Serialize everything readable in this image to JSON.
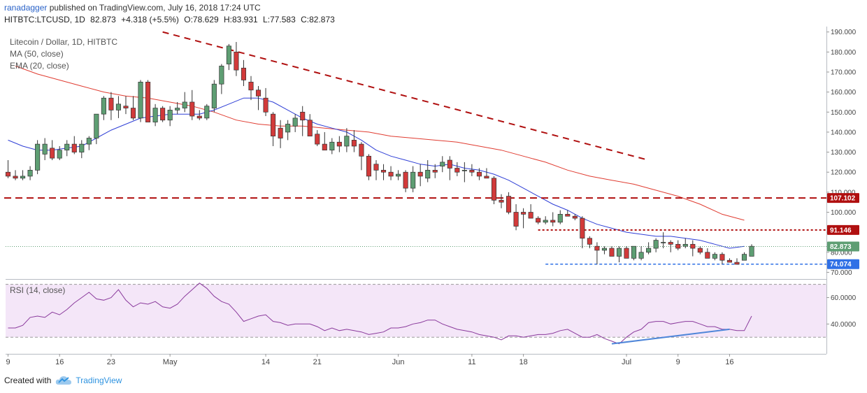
{
  "header": {
    "user": "ranadagger",
    "published": "published on TradingView.com, July 16, 2018 17:24 UTC",
    "symbol": "HITBTC:LTCUSD, 1D",
    "price": "82.873",
    "change": "+4.318 (+5.5%)",
    "open": "O:78.629",
    "high": "H:83.931",
    "low": "L:77.583",
    "close": "C:82.873"
  },
  "legend": {
    "title": "Litecoin / Dollar, 1D, HITBTC",
    "ma": "MA (50, close)",
    "ema": "EMA (20, close)"
  },
  "rsi_label": "RSI (14, close)",
  "footer": {
    "created": "Created with",
    "brand": "TradingView"
  },
  "colors": {
    "up": "#5e9e73",
    "down": "#d23a3a",
    "ma": "#e03c31",
    "ema": "#2f3fd6",
    "rsi": "#8a3a9c",
    "resistance": "#b00f0f",
    "support": "#2f70e6",
    "rsi_trend": "#4f86d9"
  },
  "chart_data": {
    "type": "candlestick",
    "title": "Litecoin / Dollar, 1D, HITBTC",
    "price_ylim": [
      67,
      192
    ],
    "price_ticks": [
      "190.000",
      "180.000",
      "170.000",
      "160.000",
      "150.000",
      "140.000",
      "130.000",
      "120.000",
      "110.000",
      "100.000",
      "90.000",
      "80.000",
      "70.000"
    ],
    "x_ticks": [
      {
        "i": 0,
        "label": "9"
      },
      {
        "i": 7,
        "label": "16"
      },
      {
        "i": 14,
        "label": "23"
      },
      {
        "i": 22,
        "label": "May"
      },
      {
        "i": 35,
        "label": "14"
      },
      {
        "i": 42,
        "label": "21"
      },
      {
        "i": 53,
        "label": "Jun"
      },
      {
        "i": 63,
        "label": "11"
      },
      {
        "i": 70,
        "label": "18"
      },
      {
        "i": 84,
        "label": "Jul"
      },
      {
        "i": 91,
        "label": "9"
      },
      {
        "i": 98,
        "label": "16"
      }
    ],
    "candles": [
      [
        120,
        126,
        117,
        118
      ],
      [
        118,
        121,
        116,
        117
      ],
      [
        117,
        121,
        116,
        118
      ],
      [
        118,
        123,
        116,
        121
      ],
      [
        121,
        136,
        119,
        134
      ],
      [
        129,
        137,
        126,
        134
      ],
      [
        132,
        136,
        126,
        127
      ],
      [
        127,
        133,
        126,
        131
      ],
      [
        131,
        136,
        128,
        134
      ],
      [
        134,
        138,
        129,
        130
      ],
      [
        130,
        136,
        127,
        134
      ],
      [
        134,
        138,
        131,
        137
      ],
      [
        137,
        149,
        134,
        149
      ],
      [
        149,
        158,
        146,
        157
      ],
      [
        157,
        160,
        146,
        151
      ],
      [
        151,
        158,
        147,
        154
      ],
      [
        153,
        158,
        149,
        152
      ],
      [
        152,
        158,
        146,
        147
      ],
      [
        147,
        166,
        145,
        165
      ],
      [
        165,
        166,
        145,
        145
      ],
      [
        145,
        154,
        143,
        152
      ],
      [
        152,
        153,
        145,
        146
      ],
      [
        146,
        153,
        143,
        151
      ],
      [
        151,
        155,
        149,
        152
      ],
      [
        152,
        160,
        150,
        155
      ],
      [
        155,
        161,
        146,
        148
      ],
      [
        148,
        151,
        146,
        147
      ],
      [
        147,
        154,
        146,
        153
      ],
      [
        152,
        166,
        150,
        164
      ],
      [
        164,
        174,
        159,
        173
      ],
      [
        174,
        184,
        171,
        183
      ],
      [
        180,
        185,
        168,
        171
      ],
      [
        172,
        176,
        163,
        166
      ],
      [
        165,
        168,
        156,
        161
      ],
      [
        161,
        163,
        151,
        158
      ],
      [
        157,
        162,
        148,
        150
      ],
      [
        149,
        150,
        133,
        138
      ],
      [
        142,
        146,
        132,
        137
      ],
      [
        140,
        146,
        136,
        144
      ],
      [
        143,
        149,
        140,
        147
      ],
      [
        150,
        153,
        138,
        146
      ],
      [
        146,
        149,
        138,
        138
      ],
      [
        139,
        141,
        133,
        134
      ],
      [
        134,
        140,
        132,
        131
      ],
      [
        131,
        137,
        129,
        135
      ],
      [
        135,
        138,
        130,
        133
      ],
      [
        133,
        142,
        130,
        138
      ],
      [
        136,
        141,
        130,
        133
      ],
      [
        134,
        135,
        121,
        128
      ],
      [
        128,
        129,
        116,
        118
      ],
      [
        124,
        126,
        116,
        121
      ],
      [
        121,
        124,
        116,
        120
      ],
      [
        120,
        123,
        116,
        118
      ],
      [
        118,
        121,
        116,
        119
      ],
      [
        120,
        121,
        110,
        112
      ],
      [
        112,
        123,
        110,
        120
      ],
      [
        120,
        124,
        113,
        118
      ],
      [
        117,
        126,
        115,
        121
      ],
      [
        121,
        124,
        117,
        120
      ],
      [
        123,
        128,
        120,
        125
      ],
      [
        126,
        128,
        116,
        122
      ],
      [
        122,
        125,
        118,
        120
      ],
      [
        121,
        125,
        115,
        121
      ],
      [
        121,
        124,
        118,
        120
      ],
      [
        120,
        122,
        116,
        118
      ],
      [
        118,
        122,
        117,
        117
      ],
      [
        117,
        118,
        104,
        106
      ],
      [
        106,
        109,
        102,
        105
      ],
      [
        108,
        110,
        99,
        100
      ],
      [
        100,
        104,
        91,
        93
      ],
      [
        100,
        102,
        92,
        99
      ],
      [
        100,
        104,
        98,
        97
      ],
      [
        97,
        98,
        94,
        95
      ],
      [
        95,
        98,
        94,
        96
      ],
      [
        96,
        100,
        93,
        95
      ],
      [
        95,
        101,
        94,
        99
      ],
      [
        99,
        101,
        98,
        98
      ],
      [
        98,
        99,
        96,
        97
      ],
      [
        97,
        98,
        82,
        87
      ],
      [
        87,
        88,
        82,
        84
      ],
      [
        83,
        85,
        74,
        81
      ],
      [
        81,
        83,
        79,
        82
      ],
      [
        82,
        83,
        79,
        78
      ],
      [
        78,
        83,
        75,
        82
      ],
      [
        82,
        83,
        77,
        77
      ],
      [
        77,
        83,
        76,
        83
      ],
      [
        77,
        83,
        76,
        80
      ],
      [
        80,
        85,
        79,
        82
      ],
      [
        82,
        87,
        80,
        86
      ],
      [
        85,
        90,
        82,
        85
      ],
      [
        85,
        86,
        80,
        84
      ],
      [
        84,
        86,
        81,
        82
      ],
      [
        83,
        87,
        82,
        84
      ],
      [
        84,
        86,
        78,
        82
      ],
      [
        82,
        83,
        79,
        80
      ],
      [
        80,
        82,
        77,
        77
      ],
      [
        77,
        80,
        76,
        79
      ],
      [
        79,
        80,
        74,
        76
      ],
      [
        76,
        77,
        75,
        75
      ],
      [
        75,
        77,
        74,
        74
      ],
      [
        76,
        80,
        76,
        79
      ],
      [
        78,
        84,
        78,
        83
      ]
    ],
    "ma50": [
      [
        1,
        173
      ],
      [
        4,
        169
      ],
      [
        7,
        166
      ],
      [
        10,
        163
      ],
      [
        13,
        160
      ],
      [
        16,
        158
      ],
      [
        19,
        157
      ],
      [
        22,
        155
      ],
      [
        25,
        153
      ],
      [
        28,
        150
      ],
      [
        31,
        146
      ],
      [
        34,
        144
      ],
      [
        37,
        143
      ],
      [
        40,
        143
      ],
      [
        43,
        142
      ],
      [
        46,
        141
      ],
      [
        49,
        140
      ],
      [
        52,
        138
      ],
      [
        55,
        137
      ],
      [
        58,
        136
      ],
      [
        61,
        135
      ],
      [
        64,
        133
      ],
      [
        67,
        131
      ],
      [
        70,
        128
      ],
      [
        73,
        125
      ],
      [
        76,
        121
      ],
      [
        79,
        118
      ],
      [
        82,
        116
      ],
      [
        85,
        114
      ],
      [
        88,
        111
      ],
      [
        91,
        108
      ],
      [
        94,
        104
      ],
      [
        97,
        99
      ],
      [
        100,
        96
      ]
    ],
    "ema20": [
      [
        0,
        136
      ],
      [
        2,
        133
      ],
      [
        4,
        131
      ],
      [
        6,
        131
      ],
      [
        8,
        132
      ],
      [
        10,
        133
      ],
      [
        12,
        137
      ],
      [
        14,
        141
      ],
      [
        16,
        144
      ],
      [
        18,
        147
      ],
      [
        20,
        148
      ],
      [
        22,
        149
      ],
      [
        24,
        149
      ],
      [
        26,
        149
      ],
      [
        28,
        151
      ],
      [
        30,
        154
      ],
      [
        32,
        157
      ],
      [
        34,
        157
      ],
      [
        36,
        155
      ],
      [
        38,
        151
      ],
      [
        40,
        147
      ],
      [
        42,
        144
      ],
      [
        44,
        142
      ],
      [
        46,
        140
      ],
      [
        48,
        136
      ],
      [
        50,
        131
      ],
      [
        52,
        128
      ],
      [
        54,
        126
      ],
      [
        56,
        124
      ],
      [
        58,
        123
      ],
      [
        60,
        124
      ],
      [
        62,
        122
      ],
      [
        64,
        121
      ],
      [
        66,
        119
      ],
      [
        68,
        116
      ],
      [
        70,
        112
      ],
      [
        72,
        108
      ],
      [
        74,
        104
      ],
      [
        76,
        101
      ],
      [
        78,
        97
      ],
      [
        80,
        94
      ],
      [
        82,
        92
      ],
      [
        84,
        90
      ],
      [
        86,
        89
      ],
      [
        88,
        88
      ],
      [
        90,
        88
      ],
      [
        92,
        87
      ],
      [
        94,
        86
      ],
      [
        96,
        84
      ],
      [
        98,
        82
      ],
      [
        100,
        83
      ]
    ],
    "resistance_trendline": {
      "from": [
        21,
        190
      ],
      "to": [
        87,
        126
      ]
    },
    "levels": [
      {
        "value": 107.102,
        "label": "107.102",
        "style": "dashed-thick",
        "from_i": 0
      },
      {
        "value": 91.146,
        "label": "91.146",
        "style": "dotted",
        "from_i": 72
      },
      {
        "value": 74.074,
        "label": "74.074",
        "style": "dashed",
        "from_i": 73
      }
    ],
    "last_price": {
      "value": 82.873,
      "label": "82.873"
    },
    "rsi": {
      "ylim": [
        19,
        73
      ],
      "ticks": [
        "60.0000",
        "40.0000"
      ],
      "overbought": 70,
      "oversold": 30,
      "values": [
        37,
        37,
        39,
        45,
        46,
        45,
        49,
        47,
        51,
        56,
        60,
        64,
        59,
        58,
        60,
        66,
        58,
        53,
        56,
        55,
        57,
        53,
        52,
        55,
        61,
        66,
        71,
        67,
        61,
        57,
        55,
        49,
        42,
        44,
        46,
        47,
        42,
        41,
        39,
        40,
        40,
        40,
        38,
        35,
        37,
        35,
        36,
        35,
        34,
        32,
        33,
        34,
        37,
        37,
        38,
        40,
        41,
        43,
        43,
        40,
        38,
        36,
        35,
        34,
        32,
        31,
        30,
        28,
        31,
        31,
        30,
        31,
        32,
        32,
        33,
        35,
        36,
        33,
        30,
        30,
        32,
        29,
        27,
        25,
        30,
        34,
        36,
        41,
        42,
        42,
        40,
        41,
        42,
        42,
        40,
        38,
        38,
        36,
        36,
        35,
        35,
        46
      ],
      "trendline": {
        "from": [
          82,
          25
        ],
        "to": [
          98,
          36
        ]
      }
    }
  }
}
